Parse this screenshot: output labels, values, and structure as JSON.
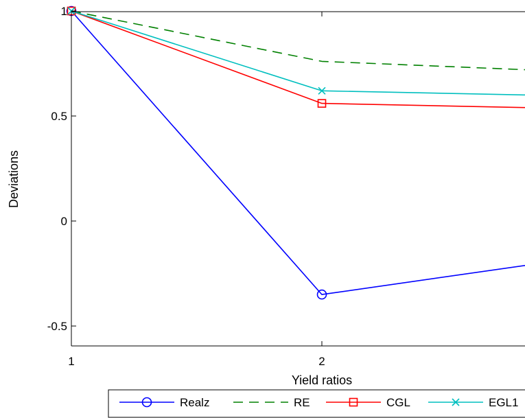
{
  "chart_data": {
    "type": "line",
    "xlabel": "Yield ratios",
    "ylabel": "Deviations",
    "xlim": [
      1,
      2.82
    ],
    "ylim": [
      -0.6,
      1
    ],
    "x_ticks": [
      1,
      2
    ],
    "y_ticks": [
      -0.5,
      0,
      0.5,
      1
    ],
    "grid": false,
    "legend_position": "bottom",
    "series": [
      {
        "name": "Realz",
        "color": "#0000ff",
        "dash": "solid",
        "marker": "circle",
        "x": [
          1,
          2,
          2.82
        ],
        "y": [
          1,
          -0.35,
          -0.21
        ]
      },
      {
        "name": "RE",
        "color": "#008000",
        "dash": "dashed",
        "marker": "none",
        "x": [
          1,
          2,
          2.82
        ],
        "y": [
          1,
          0.76,
          0.72
        ]
      },
      {
        "name": "CGL",
        "color": "#ff0000",
        "dash": "solid",
        "marker": "square",
        "x": [
          1,
          2,
          2.82
        ],
        "y": [
          1,
          0.56,
          0.54
        ]
      },
      {
        "name": "EGL1",
        "color": "#00bfbf",
        "dash": "solid",
        "marker": "x",
        "x": [
          1,
          2,
          2.82
        ],
        "y": [
          1,
          0.62,
          0.6
        ]
      }
    ]
  }
}
